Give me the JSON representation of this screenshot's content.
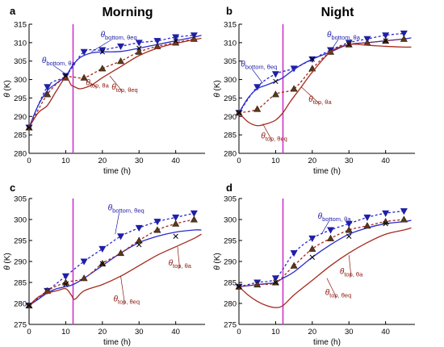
{
  "figure": {
    "col_titles": [
      "Morning",
      "Night"
    ],
    "colors": {
      "bottom": "#1f1fa8",
      "bottom_line": "#2a2ad0",
      "top": "#8b1a10",
      "top_line": "#a52a1e",
      "vline": "#cc33cc",
      "tri_fill": "#5a3a1a"
    }
  },
  "chart_data": [
    {
      "panel": "a",
      "type": "line",
      "title": "Morning",
      "xlabel": "time (h)",
      "ylabel": "θ (K)",
      "xlim": [
        0,
        48
      ],
      "ylim": [
        280,
        315
      ],
      "xticks": [
        0,
        10,
        20,
        30,
        40
      ],
      "yticks": [
        280,
        285,
        290,
        295,
        300,
        305,
        310,
        315
      ],
      "vline_x": 12,
      "series": [
        {
          "role": "bottom_eq",
          "style": "dashed",
          "marker": "down-triangle",
          "x": [
            0,
            5,
            10,
            15,
            20,
            25,
            30,
            35,
            40,
            45
          ],
          "y": [
            287,
            298,
            301,
            307.5,
            308,
            309,
            310,
            310.5,
            311.5,
            312
          ]
        },
        {
          "role": "bottom_a",
          "style": "solid",
          "marker": "",
          "x": [
            0,
            2.5,
            5,
            7.5,
            10,
            12,
            14,
            17,
            20,
            25,
            30,
            35,
            40,
            45,
            47
          ],
          "y": [
            287,
            293,
            297,
            299,
            301,
            304,
            306,
            307.2,
            307.5,
            307.6,
            308.5,
            309.5,
            310.5,
            311.5,
            312
          ]
        },
        {
          "role": "top_eq",
          "style": "dashed",
          "marker": "up-triangle",
          "x": [
            0,
            5,
            10,
            15,
            20,
            25,
            30,
            35,
            40,
            45
          ],
          "y": [
            287,
            296,
            300.5,
            300.5,
            303,
            305,
            307.5,
            309,
            310,
            311
          ]
        },
        {
          "role": "top_a",
          "style": "solid",
          "marker": "",
          "x": [
            0,
            2.5,
            5,
            7.5,
            10,
            11.5,
            12.5,
            14,
            17,
            20,
            25,
            30,
            35,
            40,
            45,
            47
          ],
          "y": [
            287,
            291,
            293,
            297,
            300.5,
            298.5,
            298,
            297.5,
            298.5,
            300.5,
            303.5,
            306.5,
            308.5,
            309.8,
            310.8,
            311.2
          ]
        },
        {
          "role": "x_marks",
          "style": "none",
          "marker": "x",
          "x": [
            0,
            10,
            20,
            30,
            40
          ],
          "y": [
            287,
            301,
            307.5,
            308.5,
            310.5
          ]
        }
      ],
      "annotations": [
        {
          "text": "θ",
          "sub": "bottom, θa"
        },
        {
          "text": "θ",
          "sub": "bottom, θeq"
        },
        {
          "text": "θ",
          "sub": "top, θa"
        },
        {
          "text": "θ",
          "sub": "top, θeq"
        }
      ]
    },
    {
      "panel": "b",
      "type": "line",
      "title": "Night",
      "xlabel": "time (h)",
      "ylabel": "θ (K)",
      "xlim": [
        0,
        48
      ],
      "ylim": [
        280,
        315
      ],
      "xticks": [
        0,
        10,
        20,
        30,
        40
      ],
      "yticks": [
        280,
        285,
        290,
        295,
        300,
        305,
        310,
        315
      ],
      "vline_x": 12,
      "series": [
        {
          "role": "bottom_eq",
          "style": "dashed",
          "marker": "down-triangle",
          "x": [
            0,
            5,
            10,
            15,
            20,
            25,
            30,
            35,
            40,
            45
          ],
          "y": [
            291,
            298,
            301.5,
            303,
            305.5,
            308,
            310,
            311,
            312,
            312.5
          ]
        },
        {
          "role": "bottom_a",
          "style": "solid",
          "marker": "",
          "x": [
            0,
            2.5,
            5,
            7.5,
            10,
            12,
            14,
            17,
            20,
            25,
            30,
            35,
            40,
            45,
            47
          ],
          "y": [
            291,
            295,
            297.5,
            298.5,
            299.5,
            300.5,
            302,
            304,
            305.5,
            307.5,
            309.5,
            310,
            310.5,
            311,
            311.3
          ]
        },
        {
          "role": "top_eq",
          "style": "dashed",
          "marker": "up-triangle",
          "x": [
            0,
            5,
            10,
            15,
            20,
            25,
            30,
            35,
            40,
            45
          ],
          "y": [
            291,
            292,
            296,
            297.5,
            303,
            307.5,
            309.5,
            310,
            310.5,
            311
          ]
        },
        {
          "role": "top_a",
          "style": "solid",
          "marker": "",
          "x": [
            0,
            2.5,
            5,
            7.5,
            10,
            12,
            14,
            17,
            20,
            25,
            30,
            35,
            40,
            45,
            47
          ],
          "y": [
            291,
            288.5,
            287.5,
            288,
            289,
            291,
            294,
            298,
            302,
            307.5,
            309.5,
            309.3,
            309,
            308.8,
            308.8
          ]
        },
        {
          "role": "x_marks",
          "style": "none",
          "marker": "x",
          "x": [
            0,
            10,
            20,
            30,
            40
          ],
          "y": [
            291,
            299.5,
            305.5,
            309.5,
            310.5
          ]
        }
      ],
      "annotations": [
        {
          "text": "θ",
          "sub": "bottom, θa"
        },
        {
          "text": "θ",
          "sub": "bottom, θeq"
        },
        {
          "text": "θ",
          "sub": "top, θa"
        },
        {
          "text": "θ",
          "sub": "top, θeq"
        }
      ]
    },
    {
      "panel": "c",
      "type": "line",
      "title": "",
      "xlabel": "time (h)",
      "ylabel": "θ (K)",
      "xlim": [
        0,
        48
      ],
      "ylim": [
        275,
        305
      ],
      "xticks": [
        0,
        10,
        20,
        30,
        40
      ],
      "yticks": [
        275,
        280,
        285,
        290,
        295,
        300,
        305
      ],
      "vline_x": 12,
      "series": [
        {
          "role": "bottom_eq",
          "style": "dashed",
          "marker": "down-triangle",
          "x": [
            0,
            5,
            10,
            15,
            20,
            25,
            30,
            35,
            40,
            45
          ],
          "y": [
            279.5,
            283,
            286.5,
            290,
            293,
            296,
            298,
            299.5,
            300.5,
            301.5
          ]
        },
        {
          "role": "bottom_a",
          "style": "solid",
          "marker": "",
          "x": [
            0,
            2.5,
            5,
            7.5,
            10,
            12,
            15,
            20,
            25,
            30,
            35,
            40,
            45,
            47
          ],
          "y": [
            279.5,
            281,
            282.5,
            283.5,
            284,
            284.5,
            286,
            289,
            292,
            294.5,
            296,
            297,
            297.5,
            297.5
          ]
        },
        {
          "role": "top_eq",
          "style": "dashed",
          "marker": "up-triangle",
          "x": [
            0,
            5,
            10,
            15,
            20,
            25,
            30,
            35,
            40,
            45
          ],
          "y": [
            279.5,
            283,
            285,
            286,
            289.5,
            292,
            295,
            297.5,
            299,
            300
          ]
        },
        {
          "role": "top_a",
          "style": "solid",
          "marker": "",
          "x": [
            0,
            2.5,
            5,
            7.5,
            10,
            11.5,
            12.5,
            15,
            20,
            25,
            30,
            35,
            40,
            45,
            47
          ],
          "y": [
            279.5,
            281.5,
            282.5,
            283,
            283.5,
            282,
            281,
            283,
            284.5,
            286.5,
            289,
            291.5,
            293.5,
            295.5,
            296.5
          ]
        },
        {
          "role": "x_marks",
          "style": "none",
          "marker": "x",
          "x": [
            0,
            10,
            20,
            30,
            40
          ],
          "y": [
            279.5,
            284.5,
            289.5,
            294,
            296
          ]
        }
      ],
      "annotations": [
        {
          "text": "θ",
          "sub": "bottom, θeq"
        },
        {
          "text": "θ",
          "sub": "top, θa"
        },
        {
          "text": "θ",
          "sub": "top, θeq"
        }
      ]
    },
    {
      "panel": "d",
      "type": "line",
      "title": "",
      "xlabel": "time (h)",
      "ylabel": "θ (K)",
      "xlim": [
        0,
        48
      ],
      "ylim": [
        275,
        305
      ],
      "xticks": [
        0,
        10,
        20,
        30,
        40
      ],
      "yticks": [
        275,
        280,
        285,
        290,
        295,
        300,
        305
      ],
      "vline_x": 12,
      "series": [
        {
          "role": "bottom_eq",
          "style": "dashed",
          "marker": "down-triangle",
          "x": [
            0,
            5,
            10,
            15,
            20,
            25,
            30,
            35,
            40,
            45
          ],
          "y": [
            284,
            285,
            286,
            292,
            295.5,
            297.5,
            299,
            300.5,
            301.5,
            302
          ]
        },
        {
          "role": "bottom_a",
          "style": "solid",
          "marker": "",
          "x": [
            0,
            2.5,
            5,
            7.5,
            10,
            12,
            15,
            20,
            25,
            30,
            35,
            40,
            45,
            47
          ],
          "y": [
            284,
            284.2,
            284.5,
            284.7,
            285,
            286,
            287.5,
            291,
            294,
            296.5,
            298,
            299,
            299.5,
            299.8
          ]
        },
        {
          "role": "top_eq",
          "style": "dashed",
          "marker": "up-triangle",
          "x": [
            0,
            5,
            10,
            15,
            20,
            25,
            30,
            35,
            40,
            45
          ],
          "y": [
            284,
            284.5,
            285,
            289,
            293,
            295.5,
            297.5,
            298.5,
            299.5,
            300
          ]
        },
        {
          "role": "top_a",
          "style": "solid",
          "marker": "",
          "x": [
            0,
            2.5,
            5,
            7.5,
            10,
            12,
            15,
            20,
            25,
            30,
            35,
            40,
            45,
            47
          ],
          "y": [
            284,
            282,
            280.5,
            279.5,
            279,
            279.5,
            282,
            285.5,
            289,
            292,
            294.5,
            296.5,
            297.5,
            298
          ]
        },
        {
          "role": "x_marks",
          "style": "none",
          "marker": "x",
          "x": [
            0,
            10,
            20,
            30,
            40
          ],
          "y": [
            284,
            285,
            291,
            296,
            299
          ]
        }
      ],
      "annotations": [
        {
          "text": "θ",
          "sub": "bottom, θa"
        },
        {
          "text": "θ",
          "sub": "top, θa"
        },
        {
          "text": "θ",
          "sub": "top, θeq"
        }
      ]
    }
  ]
}
